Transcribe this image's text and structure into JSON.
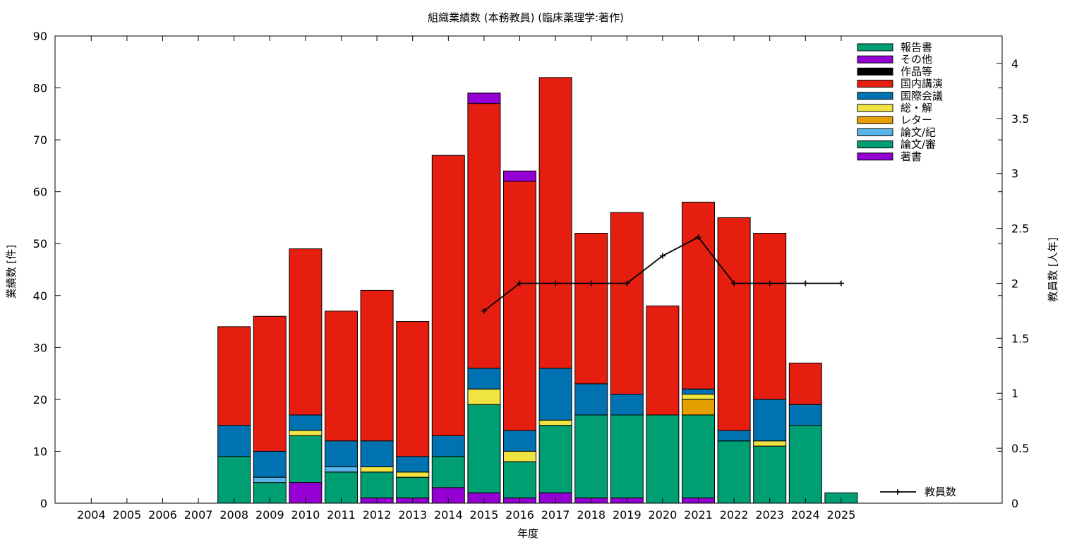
{
  "chart_data": {
    "type": "bar",
    "stacked": true,
    "title": "組織業績数 (本務教員) (臨床薬理学:著作)",
    "xlabel": "年度",
    "ylabel": "業績数 [件]",
    "y2label": "教員数 [人年]",
    "ylim": [
      0,
      90
    ],
    "y2lim": [
      0,
      4.25
    ],
    "yticks": [
      0,
      10,
      20,
      30,
      40,
      50,
      60,
      70,
      80,
      90
    ],
    "y2ticks": [
      "0",
      "0.5",
      "1",
      "1.5",
      "2",
      "2.5",
      "3",
      "3.5",
      "4"
    ],
    "legend_position": "top-right",
    "categories": [
      "2004",
      "2005",
      "2006",
      "2007",
      "2008",
      "2009",
      "2010",
      "2011",
      "2012",
      "2013",
      "2014",
      "2015",
      "2016",
      "2017",
      "2018",
      "2019",
      "2020",
      "2021",
      "2022",
      "2023",
      "2024",
      "2025"
    ],
    "series": [
      {
        "name": "著書",
        "color": "#9400d3",
        "values": [
          0,
          0,
          0,
          0,
          0,
          0,
          4,
          0,
          1,
          1,
          3,
          2,
          1,
          2,
          1,
          1,
          0,
          1,
          0,
          0,
          0,
          0
        ]
      },
      {
        "name": "論文/審",
        "color": "#009e73",
        "values": [
          0,
          0,
          0,
          0,
          9,
          4,
          9,
          6,
          5,
          4,
          6,
          17,
          7,
          13,
          16,
          16,
          17,
          16,
          12,
          11,
          15,
          2
        ]
      },
      {
        "name": "論文/紀",
        "color": "#56b4e9",
        "values": [
          0,
          0,
          0,
          0,
          0,
          1,
          0,
          1,
          0,
          0,
          0,
          0,
          0,
          0,
          0,
          0,
          0,
          0,
          0,
          0,
          0,
          0
        ]
      },
      {
        "name": "レター",
        "color": "#e69f00",
        "values": [
          0,
          0,
          0,
          0,
          0,
          0,
          0,
          0,
          0,
          0,
          0,
          0,
          0,
          0,
          0,
          0,
          0,
          3,
          0,
          0,
          0,
          0
        ]
      },
      {
        "name": "総・解",
        "color": "#f0e442",
        "values": [
          0,
          0,
          0,
          0,
          0,
          0,
          1,
          0,
          1,
          1,
          0,
          3,
          2,
          1,
          0,
          0,
          0,
          1,
          0,
          1,
          0,
          0
        ]
      },
      {
        "name": "国際会議",
        "color": "#0072b2",
        "values": [
          0,
          0,
          0,
          0,
          6,
          5,
          3,
          5,
          5,
          3,
          4,
          4,
          4,
          10,
          6,
          4,
          0,
          1,
          2,
          8,
          4,
          0
        ]
      },
      {
        "name": "国内講演",
        "color": "#e51e10",
        "values": [
          0,
          0,
          0,
          0,
          19,
          26,
          32,
          25,
          29,
          26,
          54,
          51,
          48,
          56,
          29,
          35,
          21,
          36,
          41,
          32,
          8,
          0
        ]
      },
      {
        "name": "作品等",
        "color": "#000000",
        "values": [
          0,
          0,
          0,
          0,
          0,
          0,
          0,
          0,
          0,
          0,
          0,
          0,
          0,
          0,
          0,
          0,
          0,
          0,
          0,
          0,
          0,
          0
        ]
      },
      {
        "name": "その他",
        "color": "#9400d3",
        "values": [
          0,
          0,
          0,
          0,
          0,
          0,
          0,
          0,
          0,
          0,
          0,
          2,
          2,
          0,
          0,
          0,
          0,
          0,
          0,
          0,
          0,
          0
        ]
      },
      {
        "name": "報告書",
        "color": "#009e73",
        "values": [
          0,
          0,
          0,
          0,
          0,
          0,
          0,
          0,
          0,
          0,
          0,
          0,
          0,
          0,
          0,
          0,
          0,
          0,
          0,
          0,
          0,
          0
        ]
      }
    ],
    "line_series": {
      "name": "教員数",
      "axis": "y2",
      "color": "#000000",
      "x": [
        "2015",
        "2016",
        "2017",
        "2018",
        "2019",
        "2020",
        "2021",
        "2022",
        "2023",
        "2024",
        "2025"
      ],
      "values": [
        1.75,
        2,
        2,
        2,
        2,
        2.25,
        2.42,
        2,
        2,
        2,
        2
      ]
    }
  }
}
